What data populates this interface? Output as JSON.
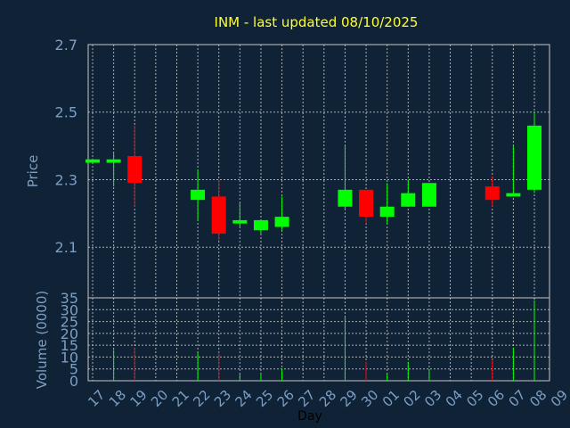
{
  "title": "INM - last updated 08/10/2025",
  "chart_data": [
    {
      "type": "candlestick",
      "ylabel": "Price",
      "ylim": [
        1.95,
        2.7
      ],
      "yticks": [
        "2.7",
        "2.5",
        "2.3",
        "2.1"
      ],
      "ytick_values": [
        2.7,
        2.5,
        2.3,
        2.1
      ],
      "candles": [
        {
          "day": "17",
          "open": 2.35,
          "high": 2.36,
          "low": 2.35,
          "close": 2.36
        },
        {
          "day": "18",
          "open": 2.35,
          "high": 2.38,
          "low": 2.28,
          "close": 2.36
        },
        {
          "day": "19",
          "open": 2.37,
          "high": 2.46,
          "low": 2.22,
          "close": 2.29
        },
        {
          "day": "22",
          "open": 2.24,
          "high": 2.33,
          "low": 2.18,
          "close": 2.27
        },
        {
          "day": "23",
          "open": 2.25,
          "high": 2.3,
          "low": 2.12,
          "close": 2.14
        },
        {
          "day": "24",
          "open": 2.17,
          "high": 2.23,
          "low": 2.16,
          "close": 2.18
        },
        {
          "day": "25",
          "open": 2.15,
          "high": 2.18,
          "low": 2.14,
          "close": 2.18
        },
        {
          "day": "26",
          "open": 2.16,
          "high": 2.25,
          "low": 2.15,
          "close": 2.19
        },
        {
          "day": "29",
          "open": 2.22,
          "high": 2.4,
          "low": 2.21,
          "close": 2.27
        },
        {
          "day": "30",
          "open": 2.27,
          "high": 2.27,
          "low": 2.17,
          "close": 2.19
        },
        {
          "day": "01",
          "open": 2.19,
          "high": 2.29,
          "low": 2.17,
          "close": 2.22
        },
        {
          "day": "02",
          "open": 2.22,
          "high": 2.3,
          "low": 2.22,
          "close": 2.26
        },
        {
          "day": "03",
          "open": 2.22,
          "high": 2.29,
          "low": 2.22,
          "close": 2.29
        },
        {
          "day": "06",
          "open": 2.28,
          "high": 2.31,
          "low": 2.22,
          "close": 2.24
        },
        {
          "day": "07",
          "open": 2.25,
          "high": 2.4,
          "low": 2.25,
          "close": 2.26
        },
        {
          "day": "08",
          "open": 2.27,
          "high": 2.5,
          "low": 2.26,
          "close": 2.46
        }
      ],
      "colors": {
        "up": "#00ff00",
        "down": "#ff0000"
      }
    },
    {
      "type": "bar",
      "ylabel": "Volume (0000)",
      "xlabel": "Day",
      "ylim": [
        0,
        35
      ],
      "yticks": [
        "35",
        "30",
        "25",
        "20",
        "15",
        "10",
        "5",
        "0"
      ],
      "ytick_values": [
        35,
        30,
        25,
        20,
        15,
        10,
        5,
        0
      ],
      "categories": [
        "17",
        "18",
        "19",
        "20",
        "21",
        "22",
        "23",
        "24",
        "25",
        "26",
        "27",
        "28",
        "29",
        "30",
        "01",
        "02",
        "03",
        "04",
        "05",
        "06",
        "07",
        "08",
        "09"
      ],
      "volumes": [
        {
          "day": "18",
          "value": 13
        },
        {
          "day": "19",
          "value": 14
        },
        {
          "day": "22",
          "value": 12
        },
        {
          "day": "23",
          "value": 12
        },
        {
          "day": "24",
          "value": 3
        },
        {
          "day": "25",
          "value": 3
        },
        {
          "day": "26",
          "value": 5
        },
        {
          "day": "29",
          "value": 27
        },
        {
          "day": "30",
          "value": 8
        },
        {
          "day": "01",
          "value": 3
        },
        {
          "day": "02",
          "value": 8
        },
        {
          "day": "03",
          "value": 5
        },
        {
          "day": "06",
          "value": 9
        },
        {
          "day": "07",
          "value": 14
        },
        {
          "day": "08",
          "value": 34
        }
      ]
    }
  ]
}
